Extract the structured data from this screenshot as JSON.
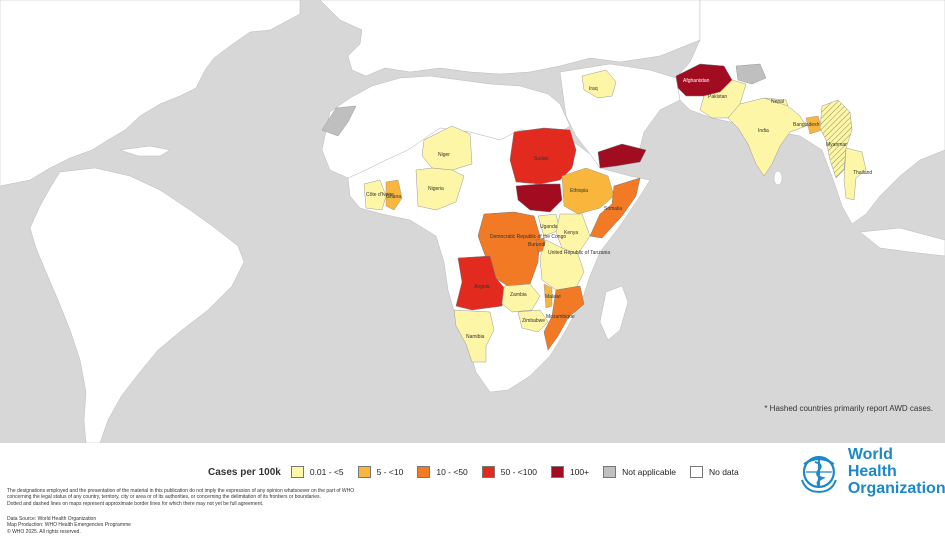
{
  "map": {
    "note": "* Hashed countries primarily report AWD cases.",
    "country_labels": {
      "iraq": "Iraq",
      "afghanistan": "Afghanistan",
      "pakistan": "Pakistan",
      "nepal": "Nepal",
      "india": "India",
      "bangladesh": "Bangladesh",
      "myanmar": "Myanmar",
      "thailand": "Thailand",
      "niger": "Niger",
      "nigeria": "Nigeria",
      "cote_divoire": "Côte d'Ivoire",
      "ghana": "Ghana",
      "sudan": "Sudan",
      "ethiopia": "Ethiopia",
      "somalia": "Somalia",
      "drc": "Democratic Republic of the Congo",
      "uganda": "Uganda",
      "kenya": "Kenya",
      "burundi": "Burundi",
      "tanzania": "United Republic of Tanzania",
      "angola": "Angola",
      "zambia": "Zambia",
      "malawi": "Malawi",
      "zimbabwe": "Zimbabwe",
      "mozambique": "Mozambique",
      "namibia": "Namibia"
    }
  },
  "legend": {
    "title": "Cases per 100k",
    "items": [
      {
        "label": "0.01 - <5",
        "color": "#fdf6a6"
      },
      {
        "label": "5 - <10",
        "color": "#f8b63c"
      },
      {
        "label": "10 - <50",
        "color": "#f27a25"
      },
      {
        "label": "50 - <100",
        "color": "#e22a1f"
      },
      {
        "label": "100+",
        "color": "#a10c20"
      },
      {
        "label": "Not applicable",
        "color": "#bfbfbf"
      },
      {
        "label": "No data",
        "color": "#ffffff"
      }
    ]
  },
  "disclaimer": [
    "The designations employed and the presentation of the material in this publication do not imply the expression of any opinion whatsoever on the part of WHO",
    "concerning the legal status of any country, territory, city or area or of its authorities, or concerning the delimitation of its frontiers or boundaries.",
    "Dotted and dashed lines on maps represent approximate border lines for which there may not yet be full agreement."
  ],
  "credits": [
    "Data Source: World Health Organization",
    "Map Production: WHO Health Emergencies Programme",
    "© WHO 2025. All rights reserved."
  ],
  "logo": {
    "line1": "World Health",
    "line2": "Organization",
    "icon": "who-emblem-icon"
  },
  "colors": {
    "ocean": "#d7d7d7",
    "land": "#ffffff",
    "who_blue": "#1a88c9"
  }
}
